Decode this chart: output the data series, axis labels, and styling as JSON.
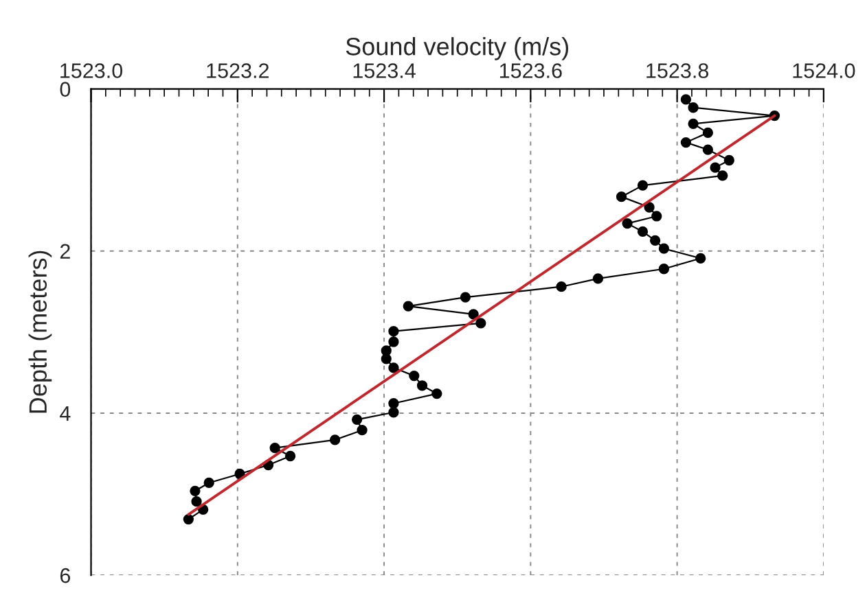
{
  "chart_data": {
    "type": "line",
    "xlabel": "Sound velocity (m/s)",
    "ylabel": "Depth (meters)",
    "xlim": [
      1523.0,
      1524.0
    ],
    "xticks": [
      {
        "value": 1523.0,
        "label": "1523.0"
      },
      {
        "value": 1523.2,
        "label": "1523.2"
      },
      {
        "value": 1523.4,
        "label": "1523.4"
      },
      {
        "value": 1523.6,
        "label": "1523.6"
      },
      {
        "value": 1523.8,
        "label": "1523.8"
      },
      {
        "value": 1524.0,
        "label": "1524.0"
      }
    ],
    "ylim": [
      6,
      0
    ],
    "yticks": [
      0,
      2,
      4,
      6
    ],
    "grid": true,
    "series": [
      {
        "color": "#000000",
        "marker": "circle",
        "x": [
          1523.812,
          1523.822,
          1523.933,
          1523.822,
          1523.842,
          1523.812,
          1523.842,
          1523.871,
          1523.852,
          1523.862,
          1523.753,
          1523.724,
          1523.762,
          1523.772,
          1523.732,
          1523.753,
          1523.77,
          1523.782,
          1523.832,
          1523.782,
          1523.692,
          1523.642,
          1523.511,
          1523.433,
          1523.522,
          1523.532,
          1523.413,
          1523.413,
          1523.403,
          1523.403,
          1523.413,
          1523.441,
          1523.452,
          1523.472,
          1523.413,
          1523.413,
          1523.363,
          1523.37,
          1523.333,
          1523.251,
          1523.272,
          1523.242,
          1523.203,
          1523.161,
          1523.142,
          1523.144,
          1523.153,
          1523.133
        ],
        "values": [
          0.13,
          0.23,
          0.33,
          0.43,
          0.54,
          0.66,
          0.75,
          0.88,
          0.97,
          1.07,
          1.19,
          1.33,
          1.46,
          1.57,
          1.66,
          1.76,
          1.87,
          1.97,
          2.09,
          2.22,
          2.34,
          2.44,
          2.57,
          2.68,
          2.78,
          2.89,
          2.99,
          3.12,
          3.23,
          3.33,
          3.44,
          3.54,
          3.66,
          3.76,
          3.88,
          3.99,
          4.08,
          4.21,
          4.33,
          4.43,
          4.53,
          4.64,
          4.75,
          4.86,
          4.96,
          5.09,
          5.19,
          5.31
        ]
      },
      {
        "color": "#c0282d",
        "marker": "none",
        "x": [
          1523.933,
          1523.133
        ],
        "values": [
          0.33,
          5.25
        ]
      }
    ]
  }
}
